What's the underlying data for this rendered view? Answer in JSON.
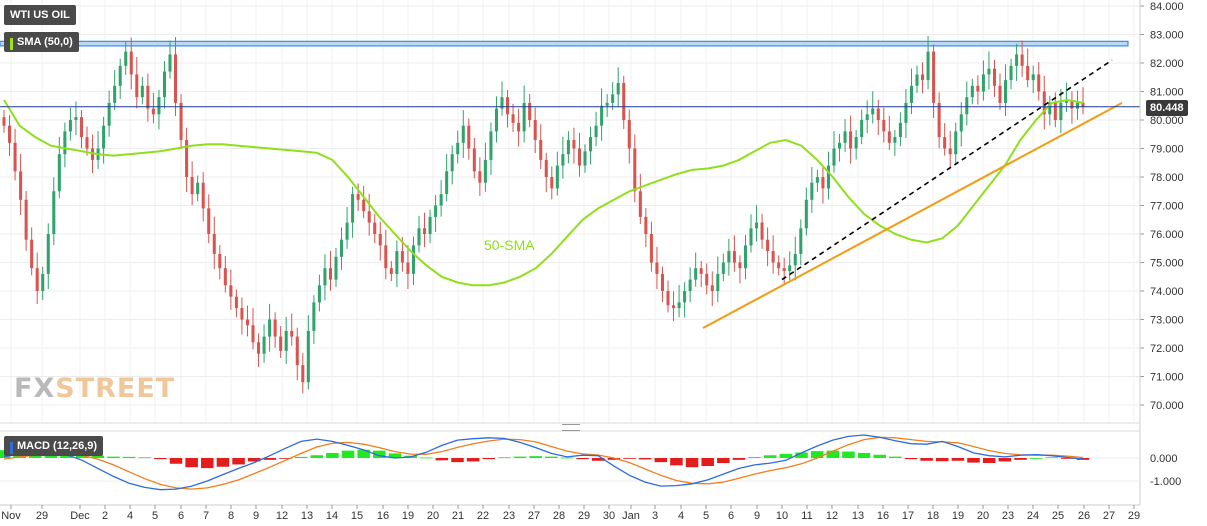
{
  "title": "WTI US OIL",
  "indicator_label": "SMA (50,0)",
  "sma_annotation": "50-SMA",
  "macd_label": "MACD (12,26,9)",
  "current_price": "80.448",
  "watermark": {
    "fx": "FX",
    "street": "STREET"
  },
  "colors": {
    "bull": "#2fa36b",
    "bear": "#d9534f",
    "sma": "#8fe01a",
    "macd_line": "#2d6cdf",
    "signal_line": "#f07f1e",
    "hist_pos": "#22e822",
    "hist_neg": "#e11d1d",
    "resistance": "#3b8fe0",
    "trend_support": "#f39c12",
    "trend_broken": "#000000"
  },
  "chart_data": [
    {
      "type": "candlestick",
      "title": "WTI US OIL",
      "x_tick_labels": [
        "Nov",
        "29",
        "Dec",
        "2",
        "4",
        "5",
        "6",
        "7",
        "8",
        "9",
        "12",
        "13",
        "14",
        "15",
        "16",
        "19",
        "20",
        "21",
        "22",
        "23",
        "27",
        "28",
        "29",
        "30",
        "Jan",
        "3",
        "4",
        "5",
        "6",
        "9",
        "10",
        "11",
        "12",
        "13",
        "16",
        "17",
        "18",
        "19",
        "20",
        "23",
        "24",
        "25",
        "26",
        "27",
        "29"
      ],
      "y_tick_labels": [
        "84.000",
        "83.000",
        "82.000",
        "81.000",
        "80.000",
        "79.000",
        "78.000",
        "77.000",
        "76.000",
        "75.000",
        "74.000",
        "73.000",
        "72.000",
        "71.000",
        "70.000"
      ],
      "ylim": [
        69.5,
        84.2
      ],
      "closes": [
        79.8,
        79.2,
        78.2,
        77.2,
        75.8,
        74.8,
        74.0,
        74.6,
        76.0,
        77.5,
        78.8,
        79.6,
        80.0,
        80.1,
        79.4,
        79.0,
        78.6,
        79.0,
        79.8,
        80.6,
        81.2,
        81.9,
        82.4,
        81.6,
        80.8,
        81.2,
        80.4,
        80.2,
        80.8,
        81.7,
        82.3,
        80.6,
        79.3,
        78.0,
        77.4,
        77.8,
        76.9,
        76.0,
        75.3,
        74.8,
        74.2,
        73.8,
        73.4,
        73.0,
        72.8,
        72.2,
        71.8,
        72.4,
        73.0,
        72.4,
        71.9,
        72.6,
        72.4,
        71.4,
        70.8,
        72.6,
        73.6,
        74.2,
        74.8,
        74.4,
        75.2,
        75.8,
        76.4,
        77.4,
        77.2,
        76.8,
        76.4,
        76.0,
        75.6,
        74.8,
        74.6,
        75.4,
        75.0,
        74.6,
        75.6,
        76.2,
        76.0,
        76.6,
        77.0,
        77.4,
        78.2,
        78.8,
        79.2,
        79.8,
        79.0,
        78.2,
        77.8,
        78.6,
        79.6,
        80.4,
        80.8,
        80.2,
        79.9,
        79.6,
        80.6,
        80.0,
        79.3,
        78.6,
        78.0,
        77.6,
        78.4,
        78.8,
        79.3,
        79.0,
        78.4,
        78.9,
        79.4,
        79.8,
        80.5,
        80.6,
        80.9,
        81.3,
        80.0,
        79.0,
        77.5,
        76.6,
        76.0,
        75.0,
        74.6,
        74.0,
        73.5,
        73.4,
        73.6,
        74.0,
        74.4,
        74.8,
        74.6,
        74.2,
        74.0,
        74.6,
        75.0,
        75.4,
        75.0,
        74.8,
        75.6,
        76.2,
        76.4,
        75.8,
        75.4,
        75.0,
        74.8,
        74.7,
        74.9,
        75.3,
        76.2,
        77.2,
        77.8,
        78.0,
        77.6,
        78.4,
        79.0,
        79.2,
        79.6,
        79.0,
        79.4,
        80.0,
        80.2,
        80.4,
        80.0,
        79.6,
        79.2,
        79.4,
        79.9,
        80.6,
        81.2,
        81.6,
        81.4,
        82.4,
        80.6,
        79.4,
        79.0,
        78.8,
        79.6,
        80.2,
        80.8,
        81.2,
        81.0,
        81.6,
        81.8,
        81.2,
        80.6,
        81.4,
        81.9,
        82.3,
        81.9,
        81.4,
        81.6,
        81.0,
        80.2,
        80.6,
        80.0,
        80.6,
        80.7,
        80.4,
        80.6,
        80.45
      ],
      "sma_50": [
        80.7,
        79.8,
        79.4,
        79.1,
        79.0,
        78.9,
        78.8,
        78.75,
        78.8,
        78.85,
        78.9,
        79.0,
        79.1,
        79.15,
        79.15,
        79.1,
        79.05,
        79.0,
        78.95,
        78.9,
        78.85,
        78.6,
        78.0,
        77.3,
        76.6,
        76.0,
        75.4,
        74.9,
        74.5,
        74.3,
        74.2,
        74.2,
        74.3,
        74.5,
        74.8,
        75.3,
        75.9,
        76.5,
        76.9,
        77.2,
        77.5,
        77.7,
        77.9,
        78.1,
        78.25,
        78.3,
        78.4,
        78.6,
        78.9,
        79.2,
        79.3,
        79.1,
        78.6,
        78.0,
        77.3,
        76.7,
        76.3,
        76.0,
        75.8,
        75.7,
        75.85,
        76.3,
        77.0,
        77.7,
        78.4,
        79.3,
        80.0,
        80.6,
        80.7,
        80.6
      ]
    },
    {
      "type": "macd",
      "title": "MACD (12,26,9)",
      "y_tick_labels": [
        "0.000",
        "-1.000"
      ],
      "ylim": [
        -1.5,
        1.05
      ],
      "macd_line": [
        0.05,
        0.18,
        0.24,
        0.22,
        0.15,
        -0.1,
        -0.45,
        -0.8,
        -1.1,
        -1.28,
        -1.38,
        -1.35,
        -1.22,
        -1.0,
        -0.72,
        -0.45,
        -0.2,
        0.1,
        0.42,
        0.72,
        0.82,
        0.72,
        0.55,
        0.35,
        0.1,
        0.0,
        0.05,
        0.25,
        0.55,
        0.78,
        0.84,
        0.88,
        0.85,
        0.68,
        0.45,
        0.2,
        0.05,
        0.12,
        0.1,
        -0.35,
        -0.75,
        -1.05,
        -1.22,
        -1.2,
        -1.12,
        -0.95,
        -0.7,
        -0.45,
        -0.3,
        -0.22,
        -0.1,
        0.22,
        0.52,
        0.78,
        0.94,
        1.0,
        0.9,
        0.75,
        0.62,
        0.6,
        0.72,
        0.5,
        0.22,
        0.1,
        0.05,
        0.12,
        0.15,
        0.1,
        0.02,
        -0.05
      ],
      "signal_line": [
        -0.05,
        0.05,
        0.12,
        0.17,
        0.18,
        0.12,
        -0.05,
        -0.3,
        -0.6,
        -0.9,
        -1.15,
        -1.3,
        -1.35,
        -1.3,
        -1.15,
        -0.95,
        -0.68,
        -0.4,
        -0.1,
        0.2,
        0.48,
        0.64,
        0.68,
        0.6,
        0.45,
        0.28,
        0.17,
        0.16,
        0.28,
        0.46,
        0.62,
        0.74,
        0.82,
        0.8,
        0.7,
        0.5,
        0.3,
        0.18,
        0.13,
        0.0,
        -0.2,
        -0.48,
        -0.75,
        -0.98,
        -1.1,
        -1.12,
        -1.05,
        -0.88,
        -0.7,
        -0.55,
        -0.42,
        -0.25,
        0.0,
        0.3,
        0.58,
        0.8,
        0.9,
        0.88,
        0.8,
        0.72,
        0.7,
        0.66,
        0.5,
        0.32,
        0.2,
        0.14,
        0.12,
        0.12,
        0.08,
        0.02
      ],
      "histogram": [
        0.34,
        0.36,
        0.36,
        0.32,
        0.26,
        0.15,
        0.1,
        0.06,
        0.05,
        0.03,
        -0.05,
        -0.25,
        -0.4,
        -0.44,
        -0.38,
        -0.28,
        -0.15,
        -0.08,
        -0.02,
        0.05,
        0.12,
        0.22,
        0.32,
        0.36,
        0.32,
        0.2,
        0.1,
        0.02,
        -0.1,
        -0.18,
        -0.15,
        -0.05,
        0.03,
        0.06,
        0.08,
        0.06,
        0.02,
        -0.05,
        -0.12,
        -0.08,
        -0.02,
        -0.06,
        -0.18,
        -0.32,
        -0.4,
        -0.35,
        -0.22,
        -0.08,
        0.04,
        0.12,
        0.18,
        0.24,
        0.3,
        0.32,
        0.28,
        0.22,
        0.14,
        0.06,
        -0.05,
        -0.12,
        -0.14,
        -0.12,
        -0.2,
        -0.22,
        -0.15,
        -0.08,
        0.0,
        0.03,
        -0.02,
        -0.08
      ]
    }
  ]
}
